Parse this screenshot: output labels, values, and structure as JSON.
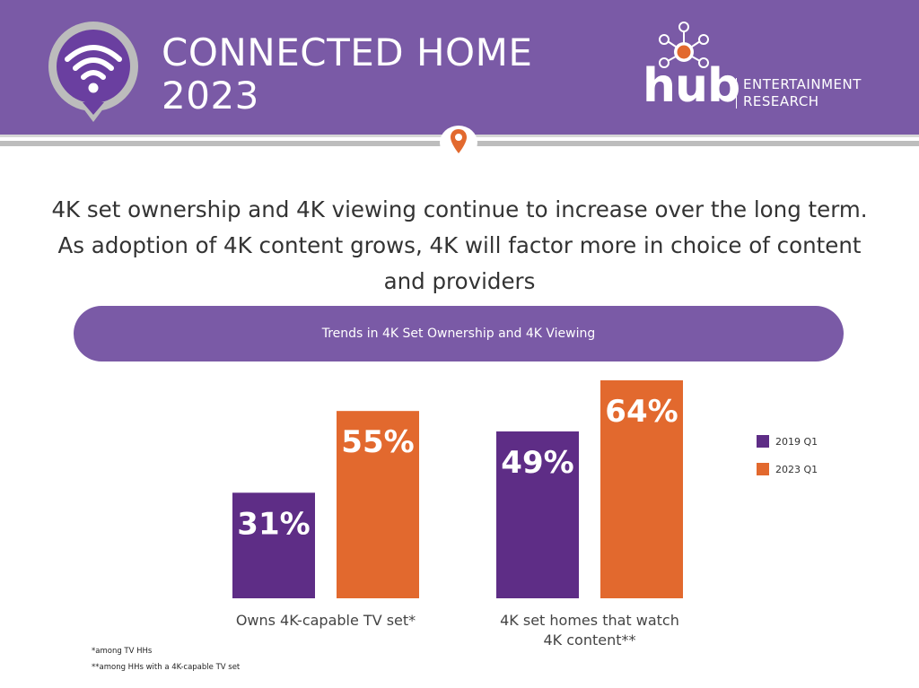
{
  "header": {
    "title_line1": "CONNECTED HOME",
    "title_line2": "2023",
    "logo_word": "hub",
    "logo_sub1": "ENTERTAINMENT",
    "logo_sub2": "RESEARCH",
    "badge_icon": "wifi-icon",
    "pin_icon": "location-pin-icon"
  },
  "headline": "4K set ownership and 4K viewing continue to increase over the long term. As adoption of 4K content grows, 4K will factor more in choice of content and providers",
  "colors": {
    "purple": "#5e2d86",
    "orange": "#e2692e",
    "header": "#7a5aa6"
  },
  "chart_data": {
    "type": "bar",
    "title": "Trends in 4K Set Ownership and 4K Viewing",
    "categories": [
      "Owns 4K-capable TV set*",
      "4K set homes that watch 4K content**"
    ],
    "category_lines": [
      [
        "Owns 4K-capable TV set*"
      ],
      [
        "4K set homes that watch",
        "4K content**"
      ]
    ],
    "series": [
      {
        "name": "2019 Q1",
        "values": [
          31,
          49
        ],
        "color": "#5e2d86"
      },
      {
        "name": "2023 Q1",
        "values": [
          55,
          64
        ],
        "color": "#e2692e"
      }
    ],
    "value_suffix": "%",
    "ylim": [
      0,
      70
    ],
    "grid": false,
    "legend": "right"
  },
  "footnotes": [
    "*among TV HHs",
    "**among HHs with a 4K-capable TV set"
  ]
}
